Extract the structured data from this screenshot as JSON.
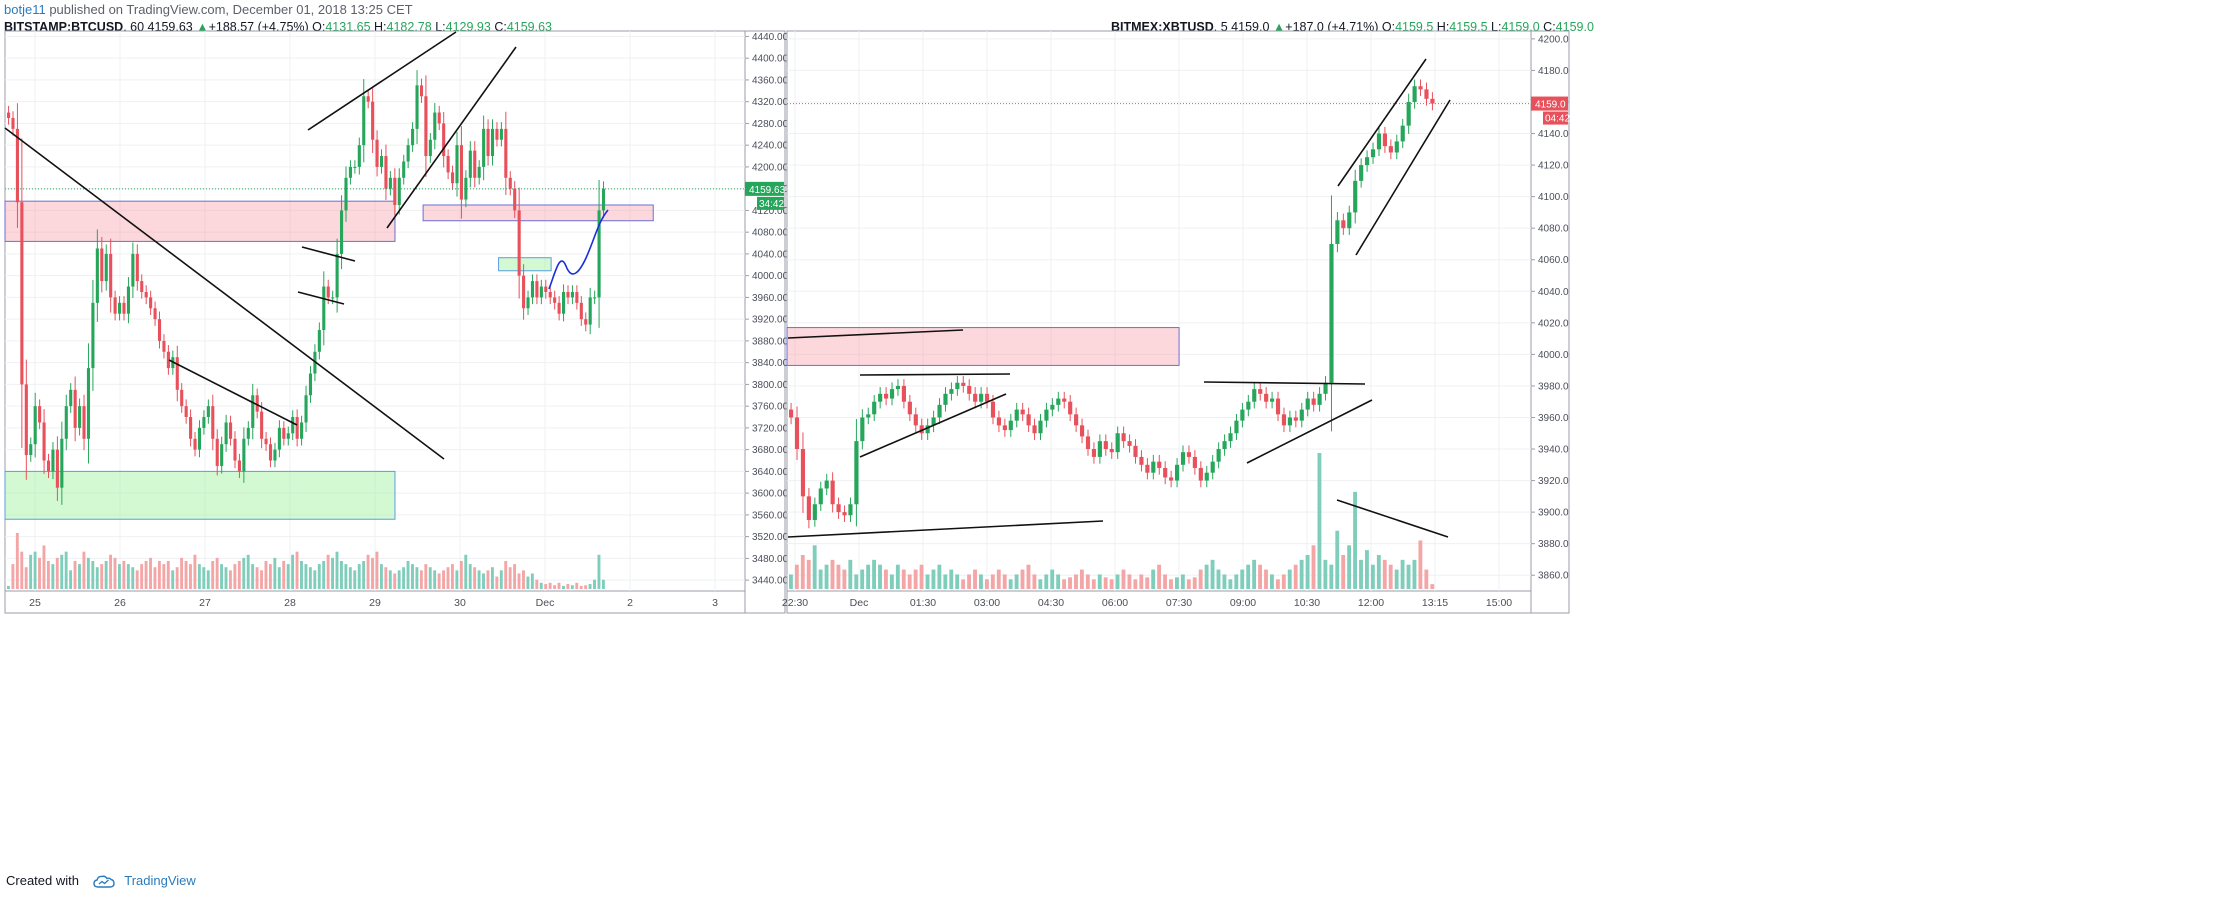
{
  "header": {
    "author": "botje11",
    "published": "published on TradingView.com, December 01, 2018 13:25 CET"
  },
  "footer": {
    "created": "Created with",
    "brand": "TradingView"
  },
  "colors": {
    "up": "#26a65b",
    "down": "#e8505b",
    "upVol": "#7fcdbb",
    "downVol": "#f4a6a6",
    "grid": "#eef0f3",
    "blue": "#1a2ddb"
  },
  "chart_data": [
    {
      "type": "candlestick",
      "symbol": "BITSTAMP:BTCUSD",
      "interval": "60",
      "last": "4159.63",
      "change": "+188.57 (+4.75%)",
      "open": "4131.65",
      "high": "4182.78",
      "low": "4129.93",
      "close": "4159.63",
      "price_label": "4159.63",
      "countdown": "34:42",
      "ylim": [
        3420,
        4450
      ],
      "yticks": [
        "4440.00",
        "4400.00",
        "4360.00",
        "4320.00",
        "4280.00",
        "4240.00",
        "4200.00",
        "4160.00",
        "4120.00",
        "4080.00",
        "4040.00",
        "4000.00",
        "3960.00",
        "3920.00",
        "3880.00",
        "3840.00",
        "3800.00",
        "3760.00",
        "3720.00",
        "3680.00",
        "3640.00",
        "3600.00",
        "3560.00",
        "3520.00",
        "3480.00",
        "3440.00"
      ],
      "xticks": [
        "25",
        "26",
        "27",
        "28",
        "29",
        "30",
        "Dec",
        "2",
        "3"
      ],
      "price_line": 4159.63,
      "series": [
        4290,
        4270,
        4135,
        3800,
        3670,
        3690,
        3760,
        3730,
        3660,
        3640,
        3680,
        3610,
        3700,
        3760,
        3790,
        3720,
        3760,
        3700,
        3830,
        3950,
        4050,
        3990,
        4040,
        3960,
        3930,
        3950,
        3930,
        3980,
        4040,
        3990,
        3970,
        3960,
        3940,
        3920,
        3880,
        3860,
        3830,
        3850,
        3790,
        3760,
        3740,
        3700,
        3680,
        3720,
        3740,
        3760,
        3700,
        3650,
        3690,
        3730,
        3700,
        3660,
        3640,
        3700,
        3720,
        3780,
        3750,
        3700,
        3690,
        3660,
        3680,
        3720,
        3700,
        3710,
        3740,
        3700,
        3730,
        3780,
        3820,
        3860,
        3900,
        3980,
        3960,
        3960,
        4040,
        4120,
        4180,
        4200,
        4200,
        4240,
        4330,
        4320,
        4250,
        4200,
        4220,
        4160,
        4180,
        4130,
        4180,
        4210,
        4240,
        4270,
        4350,
        4330,
        4220,
        4250,
        4300,
        4280,
        4220,
        4190,
        4170,
        4240,
        4140,
        4180,
        4230,
        4180,
        4200,
        4270,
        4220,
        4270,
        4250,
        4270,
        4180,
        4160,
        4120,
        4000,
        3940,
        3960,
        3990,
        3960,
        3980,
        3970,
        3960,
        3950,
        3930,
        3970,
        3960,
        3970,
        3950,
        3920,
        3910,
        3960,
        3960,
        4120,
        4159.63
      ],
      "volume": [
        5,
        40,
        90,
        60,
        35,
        55,
        60,
        50,
        70,
        45,
        40,
        50,
        55,
        60,
        30,
        45,
        40,
        60,
        50,
        45,
        35,
        40,
        45,
        55,
        50,
        40,
        45,
        40,
        35,
        30,
        40,
        45,
        50,
        35,
        45,
        40,
        45,
        30,
        35,
        50,
        45,
        40,
        55,
        40,
        35,
        30,
        45,
        50,
        40,
        35,
        30,
        40,
        45,
        50,
        55,
        40,
        35,
        30,
        45,
        40,
        50,
        35,
        45,
        40,
        55,
        60,
        45,
        40,
        35,
        30,
        40,
        45,
        55,
        50,
        60,
        45,
        40,
        35,
        30,
        40,
        45,
        55,
        50,
        60,
        40,
        35,
        30,
        25,
        30,
        35,
        45,
        40,
        35,
        30,
        40,
        35,
        30,
        25,
        30,
        35,
        40,
        30,
        45,
        55,
        40,
        35,
        30,
        25,
        30,
        35,
        20,
        30,
        45,
        35,
        40,
        25,
        30,
        20,
        25,
        15,
        10,
        8,
        10,
        6,
        10,
        5,
        8,
        6,
        10,
        5,
        6,
        8,
        15,
        55,
        15
      ],
      "zones": [
        {
          "fill": "pink",
          "y1": 4137,
          "y2": 4063,
          "x1": 0.0,
          "x2": 0.527
        },
        {
          "fill": "pink",
          "y1": 4130,
          "y2": 4101,
          "x1": 0.565,
          "x2": 0.876
        },
        {
          "fill": "green",
          "y1": 4033,
          "y2": 4009,
          "x1": 0.667,
          "x2": 0.738
        },
        {
          "fill": "green",
          "y1": 3640,
          "y2": 3552,
          "x1": 0.0,
          "x2": 0.527
        }
      ]
    },
    {
      "type": "candlestick",
      "symbol": "BITMEX:XBTUSD",
      "interval": "5",
      "last": "4159.0",
      "change": "+187.0 (+4.71%)",
      "open": "4159.5",
      "high": "4159.5",
      "low": "4159.0",
      "close": "4159.0",
      "price_label": "4159.0",
      "countdown": "04:42",
      "ylim": [
        3850,
        4205
      ],
      "yticks": [
        "4200.0",
        "4180.0",
        "4160.0",
        "4140.0",
        "4120.0",
        "4100.0",
        "4080.0",
        "4060.0",
        "4040.0",
        "4020.0",
        "4000.0",
        "3980.0",
        "3960.0",
        "3940.0",
        "3920.0",
        "3900.0",
        "3880.0",
        "3860.0"
      ],
      "xticks": [
        "22:30",
        "Dec",
        "01:30",
        "03:00",
        "04:30",
        "06:00",
        "07:30",
        "09:00",
        "10:30",
        "12:00",
        "13:15",
        "15:00"
      ],
      "price_line": 4159.0,
      "series": [
        3960,
        3940,
        3910,
        3895,
        3905,
        3915,
        3920,
        3905,
        3900,
        3898,
        3905,
        3945,
        3960,
        3962,
        3970,
        3975,
        3972,
        3978,
        3980,
        3970,
        3962,
        3955,
        3950,
        3955,
        3960,
        3968,
        3975,
        3978,
        3982,
        3980,
        3975,
        3970,
        3975,
        3970,
        3960,
        3955,
        3952,
        3958,
        3965,
        3962,
        3955,
        3950,
        3958,
        3965,
        3968,
        3972,
        3970,
        3962,
        3955,
        3948,
        3940,
        3935,
        3945,
        3940,
        3938,
        3950,
        3945,
        3942,
        3935,
        3930,
        3925,
        3932,
        3928,
        3922,
        3920,
        3930,
        3938,
        3935,
        3928,
        3920,
        3925,
        3932,
        3940,
        3945,
        3950,
        3958,
        3965,
        3970,
        3978,
        3975,
        3970,
        3972,
        3962,
        3955,
        3960,
        3958,
        3965,
        3972,
        3968,
        3975,
        3982,
        4070,
        4085,
        4080,
        4090,
        4110,
        4120,
        4125,
        4130,
        4140,
        4132,
        4128,
        4135,
        4145,
        4160,
        4170,
        4168,
        4162,
        4159
      ],
      "volume": [
        15,
        25,
        35,
        30,
        45,
        20,
        25,
        30,
        25,
        20,
        30,
        15,
        20,
        25,
        30,
        25,
        20,
        15,
        25,
        20,
        15,
        20,
        25,
        15,
        20,
        25,
        15,
        20,
        15,
        10,
        15,
        20,
        15,
        10,
        15,
        20,
        15,
        10,
        15,
        20,
        25,
        15,
        10,
        15,
        20,
        15,
        10,
        12,
        15,
        20,
        15,
        10,
        15,
        12,
        10,
        15,
        20,
        15,
        10,
        15,
        12,
        20,
        25,
        15,
        10,
        12,
        15,
        10,
        12,
        20,
        25,
        30,
        20,
        15,
        10,
        15,
        20,
        25,
        30,
        25,
        20,
        15,
        10,
        15,
        20,
        25,
        30,
        35,
        45,
        140,
        30,
        25,
        60,
        35,
        45,
        100,
        30,
        40,
        25,
        35,
        30,
        25,
        20,
        30,
        25,
        30,
        50,
        20,
        5
      ],
      "zones": [
        {
          "fill": "pink",
          "y1": 4017,
          "y2": 3993,
          "x1": 0.0,
          "x2": 0.527
        }
      ]
    }
  ]
}
